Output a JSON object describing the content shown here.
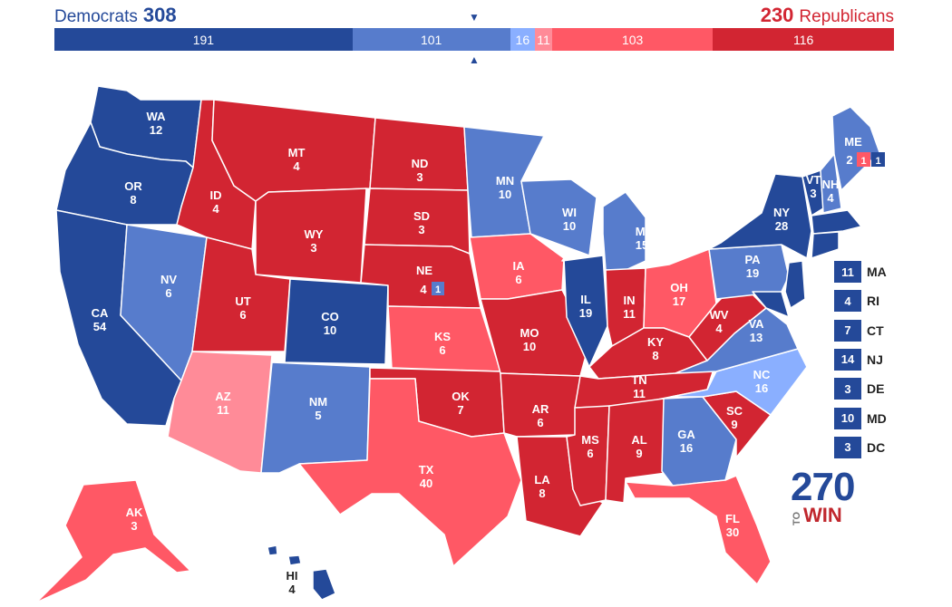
{
  "header": {
    "dem_label": "Democrats",
    "dem_total": "308",
    "rep_label": "Republicans",
    "rep_total": "230"
  },
  "colors": {
    "safe_d": "#244999",
    "likely_d": "#577ccc",
    "lean_d": "#8aafff",
    "tilt_r": "#ff8b98",
    "likely_r": "#ff5865",
    "safe_r": "#d22532"
  },
  "bar": [
    {
      "label": "191",
      "value": 191,
      "color": "#244999"
    },
    {
      "label": "101",
      "value": 101,
      "color": "#577ccc"
    },
    {
      "label": "16",
      "value": 16,
      "color": "#8aafff"
    },
    {
      "label": "11",
      "value": 11,
      "color": "#ff8b98"
    },
    {
      "label": "103",
      "value": 103,
      "color": "#ff5865"
    },
    {
      "label": "116",
      "value": 116,
      "color": "#d22532"
    }
  ],
  "states": {
    "WA": {
      "abbr": "WA",
      "ev": "12"
    },
    "OR": {
      "abbr": "OR",
      "ev": "8"
    },
    "CA": {
      "abbr": "CA",
      "ev": "54"
    },
    "NV": {
      "abbr": "NV",
      "ev": "6"
    },
    "ID": {
      "abbr": "ID",
      "ev": "4"
    },
    "MT": {
      "abbr": "MT",
      "ev": "4"
    },
    "WY": {
      "abbr": "WY",
      "ev": "3"
    },
    "UT": {
      "abbr": "UT",
      "ev": "6"
    },
    "AZ": {
      "abbr": "AZ",
      "ev": "11"
    },
    "CO": {
      "abbr": "CO",
      "ev": "10"
    },
    "NM": {
      "abbr": "NM",
      "ev": "5"
    },
    "ND": {
      "abbr": "ND",
      "ev": "3"
    },
    "SD": {
      "abbr": "SD",
      "ev": "3"
    },
    "NE": {
      "abbr": "NE",
      "ev": "4",
      "district": "1"
    },
    "KS": {
      "abbr": "KS",
      "ev": "6"
    },
    "OK": {
      "abbr": "OK",
      "ev": "7"
    },
    "TX": {
      "abbr": "TX",
      "ev": "40"
    },
    "MN": {
      "abbr": "MN",
      "ev": "10"
    },
    "IA": {
      "abbr": "IA",
      "ev": "6"
    },
    "MO": {
      "abbr": "MO",
      "ev": "10"
    },
    "AR": {
      "abbr": "AR",
      "ev": "6"
    },
    "LA": {
      "abbr": "LA",
      "ev": "8"
    },
    "WI": {
      "abbr": "WI",
      "ev": "10"
    },
    "IL": {
      "abbr": "IL",
      "ev": "19"
    },
    "MI": {
      "abbr": "MI",
      "ev": "15"
    },
    "IN": {
      "abbr": "IN",
      "ev": "11"
    },
    "OH": {
      "abbr": "OH",
      "ev": "17"
    },
    "KY": {
      "abbr": "KY",
      "ev": "8"
    },
    "TN": {
      "abbr": "TN",
      "ev": "11"
    },
    "MS": {
      "abbr": "MS",
      "ev": "6"
    },
    "AL": {
      "abbr": "AL",
      "ev": "9"
    },
    "GA": {
      "abbr": "GA",
      "ev": "16"
    },
    "FL": {
      "abbr": "FL",
      "ev": "30"
    },
    "SC": {
      "abbr": "SC",
      "ev": "9"
    },
    "NC": {
      "abbr": "NC",
      "ev": "16"
    },
    "VA": {
      "abbr": "VA",
      "ev": "13"
    },
    "WV": {
      "abbr": "WV",
      "ev": "4"
    },
    "PA": {
      "abbr": "PA",
      "ev": "19"
    },
    "NY": {
      "abbr": "NY",
      "ev": "28"
    },
    "VT": {
      "abbr": "VT",
      "ev": "3"
    },
    "NH": {
      "abbr": "NH",
      "ev": "4"
    },
    "ME": {
      "abbr": "ME",
      "ev": "2",
      "district_r": "1",
      "district_d": "1"
    },
    "AK": {
      "abbr": "AK",
      "ev": "3"
    },
    "HI": {
      "abbr": "HI",
      "ev": "4"
    }
  },
  "small_states": [
    {
      "abbr": "MA",
      "ev": "11"
    },
    {
      "abbr": "RI",
      "ev": "4"
    },
    {
      "abbr": "CT",
      "ev": "7"
    },
    {
      "abbr": "NJ",
      "ev": "14"
    },
    {
      "abbr": "DE",
      "ev": "3"
    },
    {
      "abbr": "MD",
      "ev": "10"
    },
    {
      "abbr": "DC",
      "ev": "3"
    }
  ],
  "logo": {
    "number": "270",
    "to": "TO",
    "win": "WIN"
  }
}
